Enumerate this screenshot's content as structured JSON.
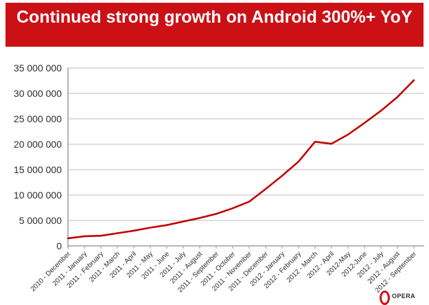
{
  "title": "Continued strong growth on Android 300%+ YoY",
  "colors": {
    "banner_red": "#cb1016",
    "line_red": "#c00000",
    "gridline": "#c9c9c9",
    "axis": "#9e9e9e",
    "label": "#2b2b2b"
  },
  "logo": {
    "text": "OPERA"
  },
  "chart_data": {
    "type": "line",
    "title": "Continued strong growth on Android 300%+ YoY",
    "xlabel": "",
    "ylabel": "",
    "grid": true,
    "legend": false,
    "ylim": [
      0,
      35000000
    ],
    "y_ticks": [
      0,
      5000000,
      10000000,
      15000000,
      20000000,
      25000000,
      30000000,
      35000000
    ],
    "y_tick_labels": [
      "0",
      "5 000 000",
      "10 000 000",
      "15 000 000",
      "20 000 000",
      "25 000 000",
      "30 000 000",
      "35 000 000"
    ],
    "categories": [
      "2010 - December",
      "2011 - January",
      "2011 - February",
      "2011 - March",
      "2011 - April",
      "2011 - May",
      "2011 - June",
      "2011 - July",
      "2011 - August",
      "2011 - September",
      "2011 - October",
      "2011 - November",
      "2011 - December",
      "2012 - January",
      "2012 - February",
      "2012 - March",
      "2012 - April",
      "2012-May",
      "2012-June",
      "2012 - July",
      "2012 - August",
      "2012 - September"
    ],
    "values": [
      1500000,
      1900000,
      2000000,
      2500000,
      3000000,
      3600000,
      4100000,
      4800000,
      5500000,
      6300000,
      7400000,
      8700000,
      11200000,
      13800000,
      16600000,
      20500000,
      20100000,
      21900000,
      24200000,
      26600000,
      29300000,
      32600000
    ]
  }
}
